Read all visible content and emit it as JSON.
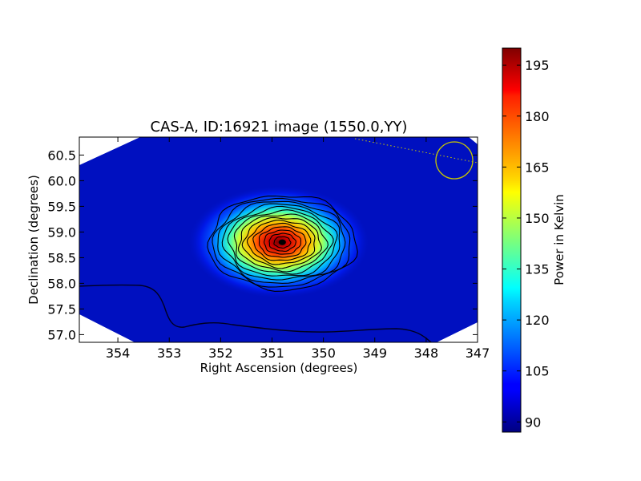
{
  "chart_data": {
    "type": "heatmap",
    "title": "CAS-A, ID:16921 image (1550.0,YY)",
    "xlabel": "Right Ascension (degrees)",
    "ylabel": "Declination (degrees)",
    "xlim": [
      354.75,
      347.0
    ],
    "ylim": [
      56.85,
      60.85
    ],
    "x_ticks": [
      354,
      353,
      352,
      351,
      350,
      349,
      348,
      347
    ],
    "y_ticks": [
      57.0,
      57.5,
      58.0,
      58.5,
      59.0,
      59.5,
      60.0,
      60.5
    ],
    "x_tick_labels": [
      "354",
      "353",
      "352",
      "351",
      "350",
      "349",
      "348",
      "347"
    ],
    "y_tick_labels": [
      "57.0",
      "57.5",
      "58.0",
      "58.5",
      "59.0",
      "59.5",
      "60.0",
      "60.5"
    ],
    "source_peak": {
      "ra": 350.8,
      "dec": 58.8,
      "value": 200
    },
    "background_value": 92,
    "contour_levels": 14,
    "beam_marker": {
      "ra": 347.45,
      "dec": 60.38,
      "color": "#c8c800"
    },
    "colorbar": {
      "label": "Power in Kelvin",
      "min": 87,
      "max": 200,
      "ticks": [
        90,
        105,
        120,
        135,
        150,
        165,
        180,
        195
      ],
      "tick_labels": [
        "90",
        "105",
        "120",
        "135",
        "150",
        "165",
        "180",
        "195"
      ],
      "colormap": "jet"
    },
    "grid": false
  }
}
